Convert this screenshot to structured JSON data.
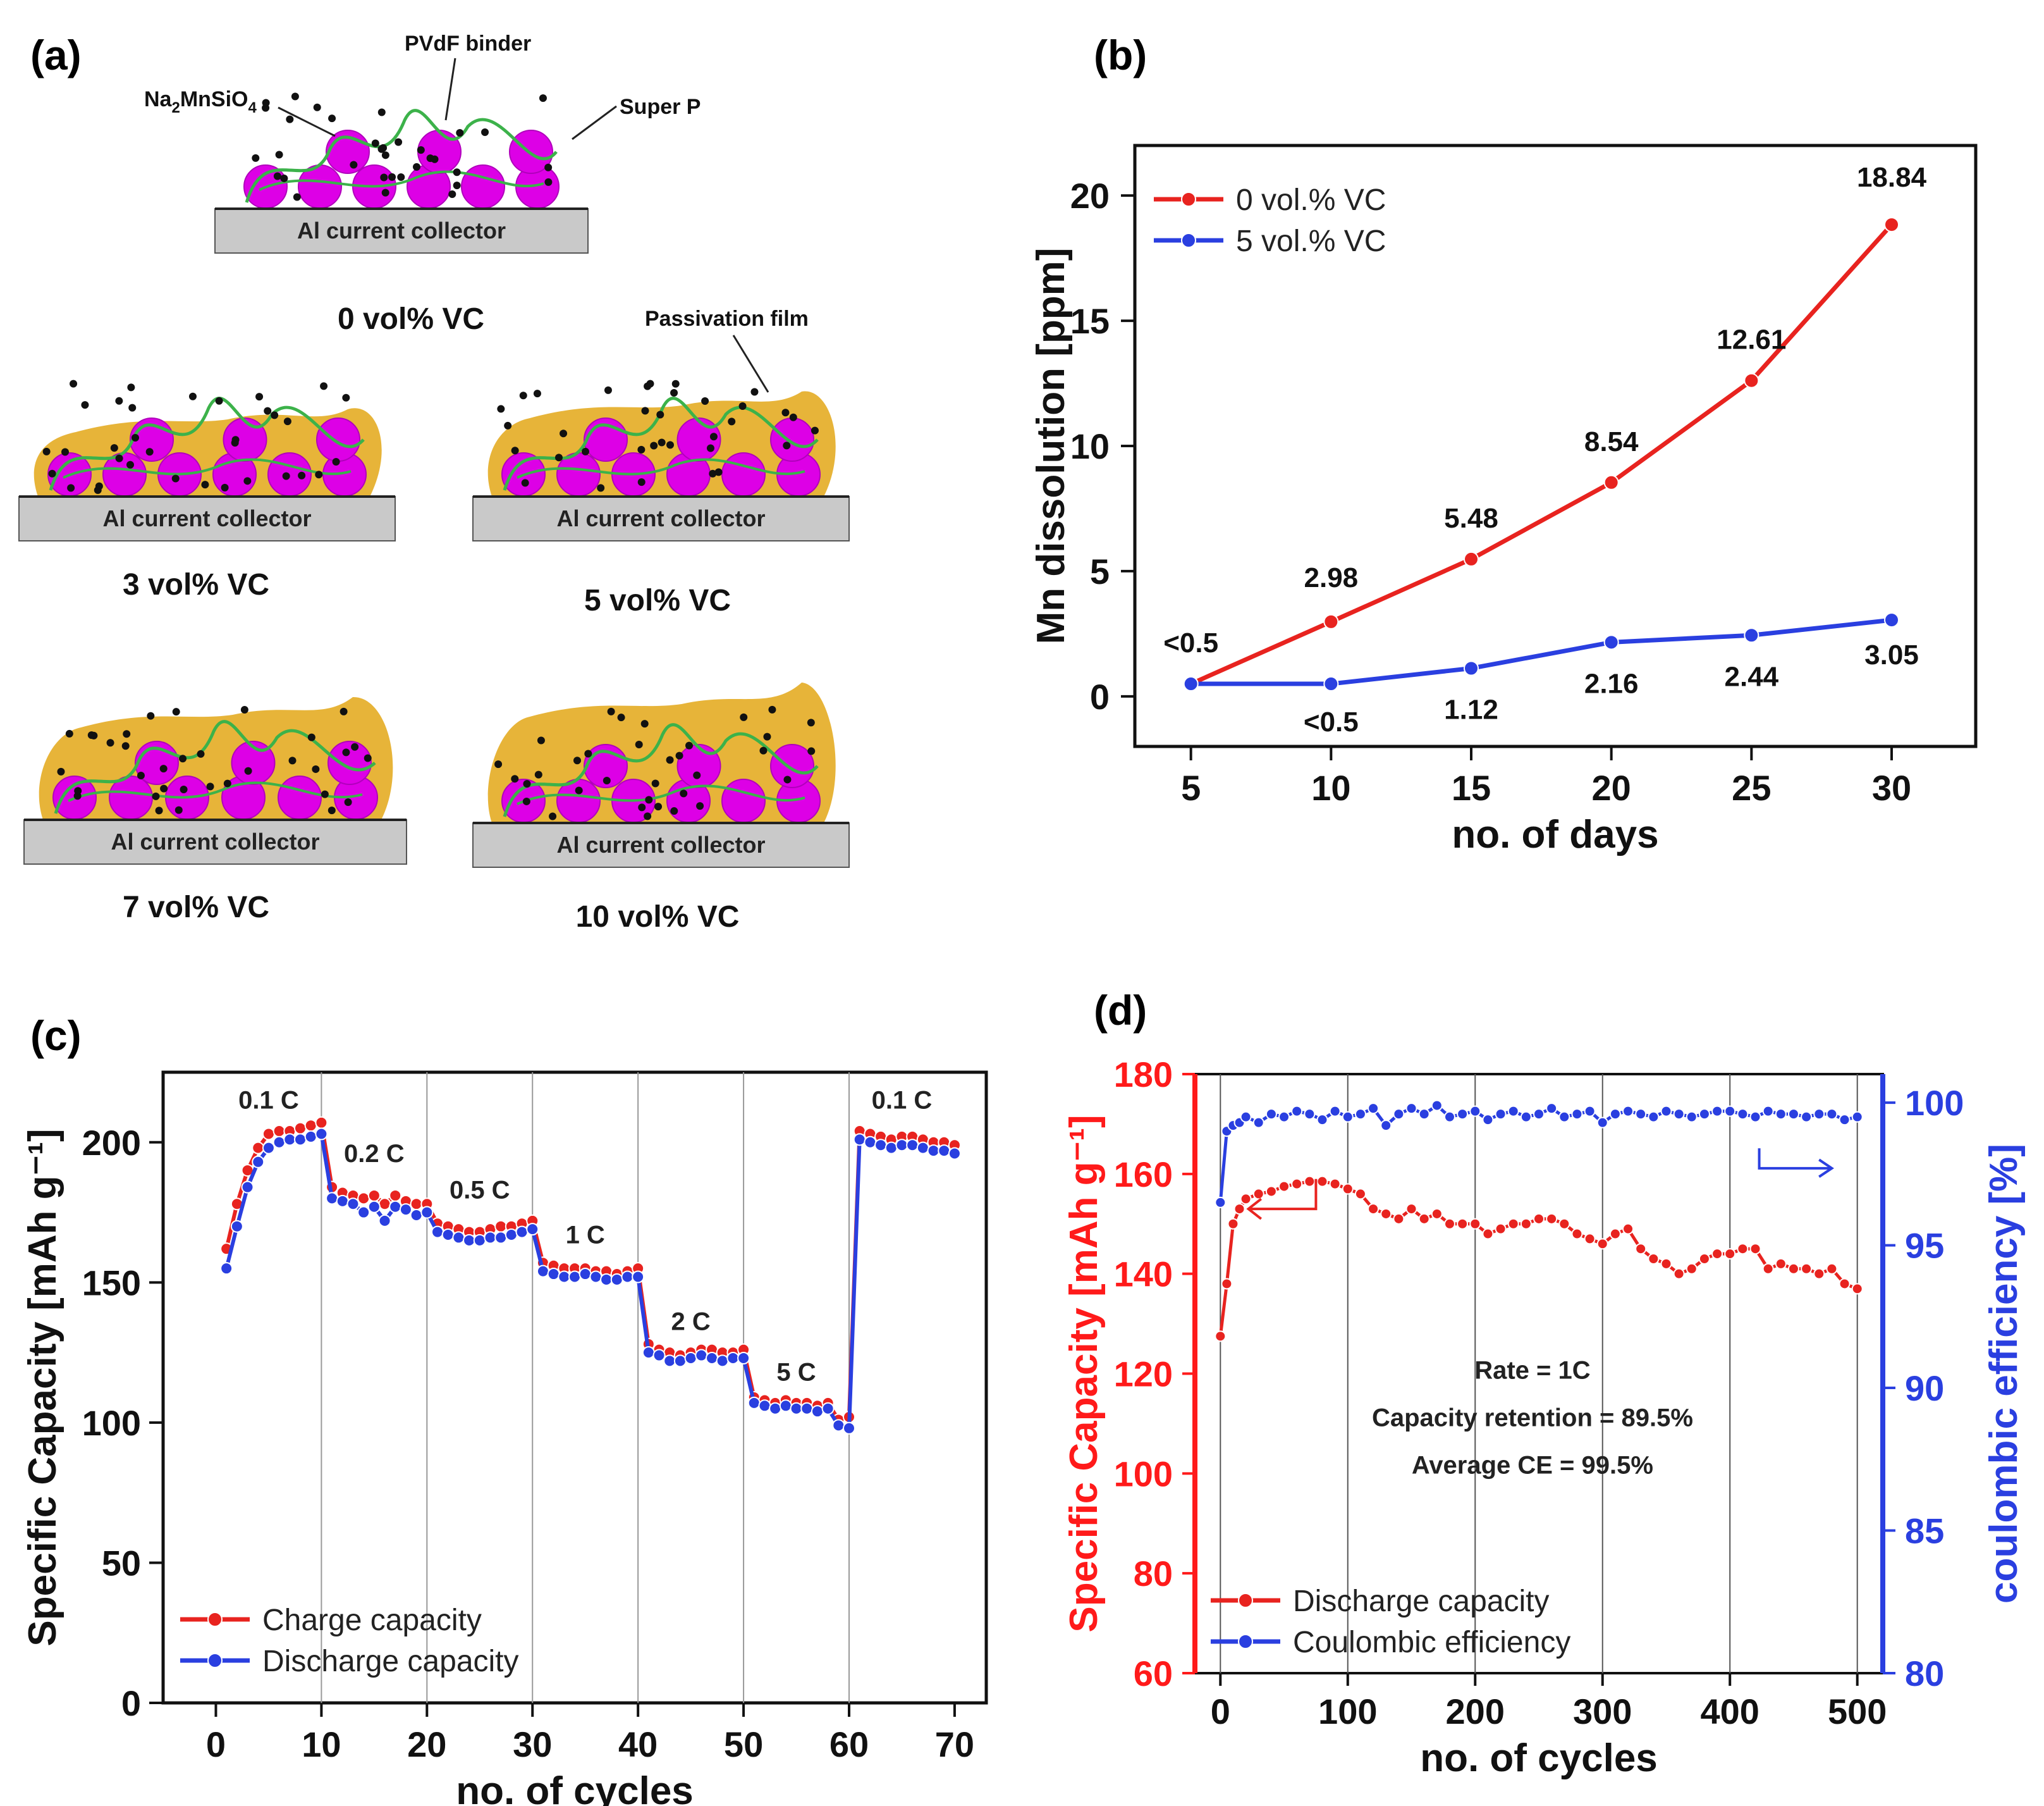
{
  "panel_labels": {
    "a": "(a)",
    "b": "(b)",
    "c": "(c)",
    "d": "(d)"
  },
  "schematic": {
    "annotations": {
      "binder": "PVdF binder",
      "active_main": "Na",
      "active_sub": "2",
      "active_rest": "MnSiO",
      "active_sub2": "4",
      "carbon": "Super P",
      "film": "Passivation film"
    },
    "collector_label": "Al current collector",
    "cells": [
      {
        "label": "0 vol% VC",
        "film": 0
      },
      {
        "label": "3 vol% VC",
        "film": 1
      },
      {
        "label": "5 vol% VC",
        "film": 2
      },
      {
        "label": "7 vol% VC",
        "film": 3
      },
      {
        "label": "10 vol% VC",
        "film": 4
      }
    ],
    "colors": {
      "particle": "#dd00e6",
      "binder": "#3cb24a",
      "film": "#e6b02e",
      "collector": "#c9c9c9"
    }
  },
  "chart_data": [
    {
      "id": "b",
      "type": "line",
      "title": "",
      "xlabel": "no. of days",
      "ylabel": "Mn dissolution [ppm]",
      "xlim": [
        3,
        33
      ],
      "ylim": [
        -2,
        22
      ],
      "xticks": [
        5,
        10,
        15,
        20,
        25,
        30
      ],
      "yticks": [
        0,
        5,
        10,
        15,
        20
      ],
      "x": [
        5,
        10,
        15,
        20,
        25,
        30
      ],
      "series": [
        {
          "name": "0 vol.% VC",
          "color": "#e8231f",
          "values": [
            0.5,
            2.98,
            5.48,
            8.54,
            12.61,
            18.84
          ],
          "labels": [
            "<0.5",
            "2.98",
            "5.48",
            "8.54",
            "12.61",
            "18.84"
          ]
        },
        {
          "name": "5 vol.% VC",
          "color": "#2a3fe0",
          "values": [
            0.5,
            0.5,
            1.12,
            2.16,
            2.44,
            3.05
          ],
          "labels": [
            "",
            "<0.5",
            "1.12",
            "2.16",
            "2.44",
            "3.05"
          ]
        }
      ]
    },
    {
      "id": "c",
      "type": "line",
      "xlabel": "no. of cycles",
      "ylabel": "Specific Capacity [mAh g⁻¹]",
      "xlim": [
        -5,
        73
      ],
      "ylim": [
        0,
        225
      ],
      "xticks": [
        0,
        10,
        20,
        30,
        40,
        50,
        60,
        70
      ],
      "yticks": [
        0,
        50,
        100,
        150,
        200
      ],
      "rate_labels": [
        {
          "text": "0.1 C",
          "x": 5,
          "y": 212
        },
        {
          "text": "0.2 C",
          "x": 15,
          "y": 193
        },
        {
          "text": "0.5 C",
          "x": 25,
          "y": 180
        },
        {
          "text": "1 C",
          "x": 35,
          "y": 164
        },
        {
          "text": "2 C",
          "x": 45,
          "y": 133
        },
        {
          "text": "5 C",
          "x": 55,
          "y": 115
        },
        {
          "text": "0.1 C",
          "x": 65,
          "y": 212
        }
      ],
      "series": [
        {
          "name": "Charge capacity",
          "color": "#e8231f",
          "values": [
            162,
            178,
            190,
            198,
            203,
            204,
            204,
            205,
            206,
            207,
            184,
            182,
            181,
            180,
            181,
            178,
            181,
            179,
            178,
            178,
            171,
            170,
            169,
            168,
            168,
            169,
            170,
            170,
            171,
            172,
            157,
            156,
            155,
            155,
            155,
            154,
            154,
            153,
            154,
            155,
            128,
            126,
            125,
            124,
            125,
            126,
            126,
            125,
            125,
            126,
            109,
            108,
            107,
            108,
            107,
            107,
            106,
            107,
            101,
            102,
            204,
            203,
            202,
            201,
            202,
            202,
            201,
            200,
            200,
            199
          ]
        },
        {
          "name": "Discharge capacity",
          "color": "#2a3fe0",
          "values": [
            155,
            170,
            184,
            193,
            198,
            200,
            201,
            201,
            202,
            203,
            180,
            179,
            178,
            175,
            177,
            172,
            177,
            176,
            174,
            175,
            168,
            167,
            166,
            165,
            165,
            166,
            166,
            167,
            168,
            169,
            154,
            153,
            152,
            152,
            153,
            152,
            151,
            151,
            152,
            152,
            125,
            124,
            122,
            122,
            123,
            124,
            123,
            122,
            123,
            123,
            107,
            106,
            105,
            106,
            105,
            105,
            104,
            105,
            99,
            98,
            201,
            200,
            199,
            198,
            199,
            199,
            198,
            197,
            197,
            196
          ]
        }
      ]
    },
    {
      "id": "d",
      "type": "line",
      "xlabel": "no. of cycles",
      "ylabel_left": "Specific Capacity [mAh g⁻¹]",
      "ylabel_right": "coulombic efficiency [%]",
      "xlim": [
        -20,
        520
      ],
      "ylim_left": [
        60,
        180
      ],
      "ylim_right": [
        80,
        101
      ],
      "xticks": [
        0,
        100,
        200,
        300,
        400,
        500
      ],
      "yticks_left": [
        60,
        80,
        100,
        120,
        140,
        160,
        180
      ],
      "yticks_right": [
        80,
        85,
        90,
        95,
        100
      ],
      "annotations": [
        "Rate = 1C",
        "Capacity retention = 89.5%",
        "Average CE = 99.5%"
      ],
      "series": [
        {
          "name": "Discharge capacity",
          "color": "#e8231f",
          "axis": "left",
          "x": [
            0,
            5,
            10,
            15,
            20,
            30,
            40,
            50,
            60,
            70,
            80,
            90,
            100,
            110,
            120,
            130,
            140,
            150,
            160,
            170,
            180,
            190,
            200,
            210,
            220,
            230,
            240,
            250,
            260,
            270,
            280,
            290,
            300,
            310,
            320,
            330,
            340,
            350,
            360,
            370,
            380,
            390,
            400,
            410,
            420,
            430,
            440,
            450,
            460,
            470,
            480,
            490,
            500
          ],
          "values": [
            127.5,
            138,
            150,
            153,
            155,
            156,
            156.5,
            157.5,
            158,
            158.5,
            158.5,
            158,
            157,
            156,
            153,
            152,
            151,
            153,
            151,
            152,
            150,
            150,
            150,
            148,
            149,
            150,
            150,
            151,
            151,
            150,
            148,
            147,
            146,
            148,
            149,
            145,
            143,
            142,
            140,
            141,
            143,
            144,
            144,
            145,
            145,
            141,
            142,
            141,
            141,
            140,
            141,
            138,
            137
          ]
        },
        {
          "name": "Coulombic efficiency",
          "color": "#2a3fe0",
          "axis": "right",
          "x": [
            0,
            5,
            10,
            15,
            20,
            30,
            40,
            50,
            60,
            70,
            80,
            90,
            100,
            110,
            120,
            130,
            140,
            150,
            160,
            170,
            180,
            190,
            200,
            210,
            220,
            230,
            240,
            250,
            260,
            270,
            280,
            290,
            300,
            310,
            320,
            330,
            340,
            350,
            360,
            370,
            380,
            390,
            400,
            410,
            420,
            430,
            440,
            450,
            460,
            470,
            480,
            490,
            500
          ],
          "values": [
            96.5,
            99,
            99.2,
            99.3,
            99.5,
            99.3,
            99.6,
            99.5,
            99.7,
            99.6,
            99.4,
            99.7,
            99.5,
            99.6,
            99.8,
            99.2,
            99.6,
            99.8,
            99.6,
            99.9,
            99.5,
            99.6,
            99.7,
            99.4,
            99.6,
            99.7,
            99.5,
            99.6,
            99.8,
            99.5,
            99.6,
            99.7,
            99.3,
            99.6,
            99.7,
            99.6,
            99.5,
            99.7,
            99.6,
            99.5,
            99.6,
            99.7,
            99.7,
            99.6,
            99.5,
            99.7,
            99.6,
            99.6,
            99.5,
            99.6,
            99.6,
            99.4,
            99.5
          ]
        }
      ]
    }
  ]
}
